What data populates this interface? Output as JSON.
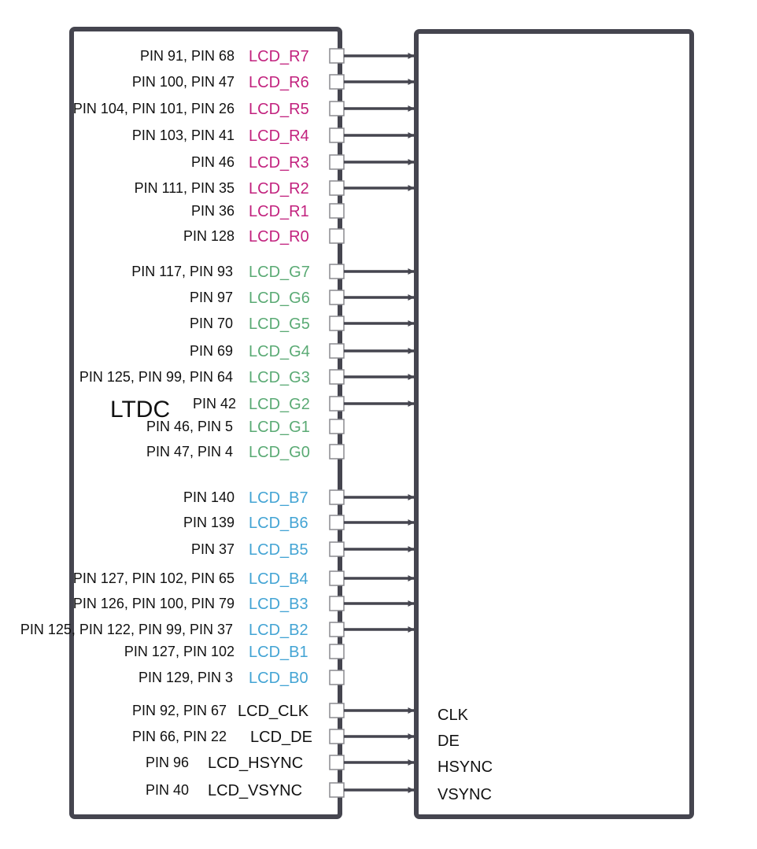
{
  "ltdc_label": "LTDC",
  "colors": {
    "box": "#45454f",
    "arrow": "#45454f",
    "red": "#c2227e",
    "green": "#5aaa74",
    "blue": "#43a4d4",
    "black": "#111111"
  },
  "signals": [
    {
      "pins": "PIN 91, PIN 68",
      "name": "LCD_R7",
      "color": "red",
      "arrow": true,
      "display": ""
    },
    {
      "pins": "PIN 100, PIN 47",
      "name": "LCD_R6",
      "color": "red",
      "arrow": true,
      "display": ""
    },
    {
      "pins": "PIN 104, PIN 101, PIN 26",
      "name": "LCD_R5",
      "color": "red",
      "arrow": true,
      "display": ""
    },
    {
      "pins": "PIN 103, PIN 41",
      "name": "LCD_R4",
      "color": "red",
      "arrow": true,
      "display": ""
    },
    {
      "pins": "PIN 46",
      "name": "LCD_R3",
      "color": "red",
      "arrow": true,
      "display": ""
    },
    {
      "pins": "PIN 111, PIN 35",
      "name": "LCD_R2",
      "color": "red",
      "arrow": true,
      "display": ""
    },
    {
      "pins": "PIN 36",
      "name": "LCD_R1",
      "color": "red",
      "arrow": false,
      "display": ""
    },
    {
      "pins": "PIN 128",
      "name": "LCD_R0",
      "color": "red",
      "arrow": false,
      "display": ""
    },
    {
      "pins": "PIN 117, PIN 93",
      "name": "LCD_G7",
      "color": "green",
      "arrow": true,
      "display": ""
    },
    {
      "pins": "PIN 97",
      "name": "LCD_G6",
      "color": "green",
      "arrow": true,
      "display": ""
    },
    {
      "pins": "PIN 70",
      "name": "LCD_G5",
      "color": "green",
      "arrow": true,
      "display": ""
    },
    {
      "pins": "PIN 69",
      "name": "LCD_G4",
      "color": "green",
      "arrow": true,
      "display": ""
    },
    {
      "pins": "PIN 125, PIN 99, PIN 64",
      "name": "LCD_G3",
      "color": "green",
      "arrow": true,
      "display": ""
    },
    {
      "pins": "PIN 42",
      "name": "LCD_G2",
      "color": "green",
      "arrow": true,
      "display": ""
    },
    {
      "pins": "PIN 46, PIN 5",
      "name": "LCD_G1",
      "color": "green",
      "arrow": false,
      "display": ""
    },
    {
      "pins": "PIN 47, PIN 4",
      "name": "LCD_G0",
      "color": "green",
      "arrow": false,
      "display": ""
    },
    {
      "pins": "PIN 140",
      "name": "LCD_B7",
      "color": "blue",
      "arrow": true,
      "display": ""
    },
    {
      "pins": "PIN 139",
      "name": "LCD_B6",
      "color": "blue",
      "arrow": true,
      "display": ""
    },
    {
      "pins": "PIN 37",
      "name": "LCD_B5",
      "color": "blue",
      "arrow": true,
      "display": ""
    },
    {
      "pins": "PIN 127, PIN 102, PIN 65",
      "name": "LCD_B4",
      "color": "blue",
      "arrow": true,
      "display": ""
    },
    {
      "pins": "PIN 126, PIN 100, PIN 79",
      "name": "LCD_B3",
      "color": "blue",
      "arrow": true,
      "display": ""
    },
    {
      "pins": "PIN 125, PIN 122, PIN 99, PIN 37",
      "name": "LCD_B2",
      "color": "blue",
      "arrow": true,
      "display": ""
    },
    {
      "pins": "PIN 127, PIN 102",
      "name": "LCD_B1",
      "color": "blue",
      "arrow": false,
      "display": ""
    },
    {
      "pins": "PIN 129, PIN 3",
      "name": "LCD_B0",
      "color": "blue",
      "arrow": false,
      "display": ""
    },
    {
      "pins": "PIN 92, PIN 67",
      "name": "LCD_CLK",
      "color": "black",
      "arrow": true,
      "display": "CLK"
    },
    {
      "pins": "PIN 66, PIN 22",
      "name": "LCD_DE",
      "color": "black",
      "arrow": true,
      "display": "DE"
    },
    {
      "pins": "PIN 96",
      "name": "LCD_HSYNC",
      "color": "black",
      "arrow": true,
      "display": "HSYNC"
    },
    {
      "pins": "PIN 40",
      "name": "LCD_VSYNC",
      "color": "black",
      "arrow": true,
      "display": "VSYNC"
    }
  ]
}
